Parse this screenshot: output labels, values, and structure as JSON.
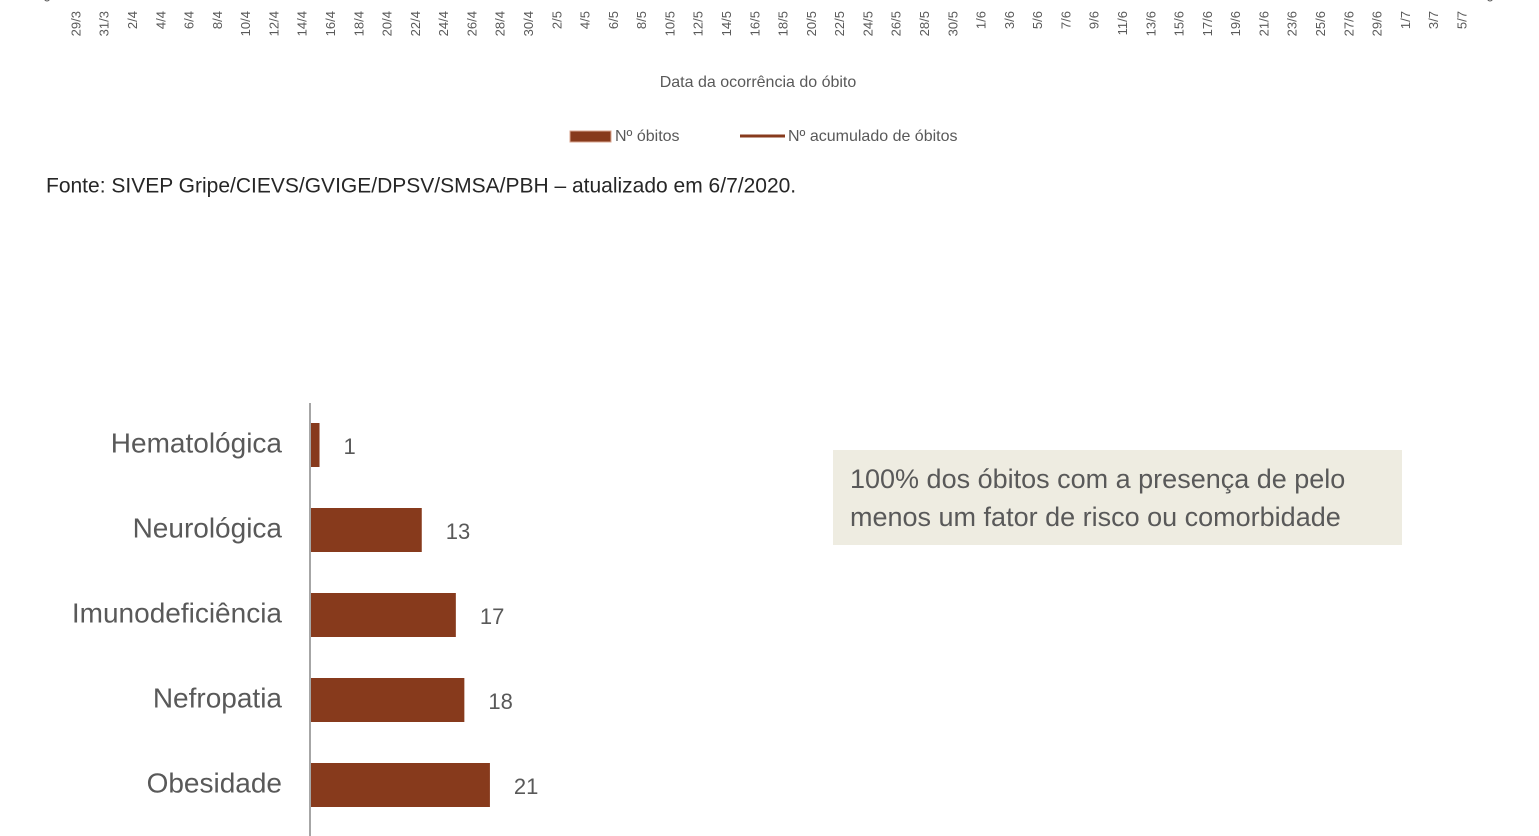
{
  "chart_data": [
    {
      "type": "bar",
      "categories": [
        "29/3",
        "31/3",
        "2/4",
        "4/4",
        "6/4",
        "8/4",
        "10/4",
        "12/4",
        "14/4",
        "16/4",
        "18/4",
        "20/4",
        "22/4",
        "24/4",
        "26/4",
        "28/4",
        "30/4",
        "2/5",
        "4/5",
        "6/5",
        "8/5",
        "10/5",
        "12/5",
        "14/5",
        "16/5",
        "18/5",
        "20/5",
        "22/5",
        "24/5",
        "26/5",
        "28/5",
        "30/5",
        "1/6",
        "3/6",
        "5/6",
        "7/6",
        "9/6",
        "11/6",
        "13/6",
        "15/6",
        "17/6",
        "19/6",
        "21/6",
        "23/6",
        "25/6",
        "27/6",
        "29/6",
        "1/7",
        "3/7",
        "5/7"
      ],
      "xlabel": "Data da ocorrência  do óbito",
      "yticks": [
        0
      ],
      "y2ticks": [
        0
      ],
      "series": [
        {
          "name": "Nº óbitos",
          "color": "#873a1c",
          "type": "bar"
        },
        {
          "name": "Nº acumulado de óbitos",
          "color": "#873a1c",
          "type": "line",
          "axis": "y2"
        }
      ]
    },
    {
      "type": "hbar",
      "categories": [
        "Hematológica",
        "Neurológica",
        "Imunodeficiência",
        "Nefropatia",
        "Obesidade"
      ],
      "values": [
        1,
        13,
        17,
        18,
        21
      ],
      "xlim": [
        0,
        50
      ],
      "color": "#873a1c"
    }
  ],
  "source": "Fonte: SIVEP Gripe/CIEVS/GVIGE/DPSV/SMSA/PBH – atualizado em 6/7/2020.",
  "annotation": [
    "100% dos óbitos com a presença de pelo",
    "menos um fator de risco ou comorbidade"
  ]
}
